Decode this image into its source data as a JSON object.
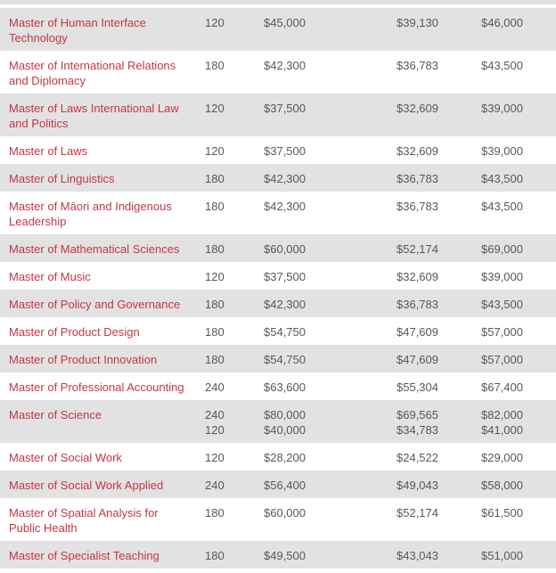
{
  "table": {
    "accent_color": "#c53546",
    "shaded_row_bg": "#e2e2e2",
    "value_text_color": "#57585a",
    "rows": [
      {
        "program": "Master of Human Interface Technology",
        "points": [
          "120"
        ],
        "fee_a": [
          "$45,000"
        ],
        "fee_b": [
          "$39,130"
        ],
        "fee_c": [
          "$46,000"
        ],
        "shaded": true
      },
      {
        "program": "Master of International Relations and Diplomacy",
        "points": [
          "180"
        ],
        "fee_a": [
          "$42,300"
        ],
        "fee_b": [
          "$36,783"
        ],
        "fee_c": [
          "$43,500"
        ],
        "shaded": false
      },
      {
        "program": "Master of Laws International Law and Politics",
        "points": [
          "120"
        ],
        "fee_a": [
          "$37,500"
        ],
        "fee_b": [
          "$32,609"
        ],
        "fee_c": [
          "$39,000"
        ],
        "shaded": true
      },
      {
        "program": "Master of Laws",
        "points": [
          "120"
        ],
        "fee_a": [
          "$37,500"
        ],
        "fee_b": [
          "$32,609"
        ],
        "fee_c": [
          "$39,000"
        ],
        "shaded": false
      },
      {
        "program": "Master of Linguistics",
        "points": [
          "180"
        ],
        "fee_a": [
          "$42,300"
        ],
        "fee_b": [
          "$36,783"
        ],
        "fee_c": [
          "$43,500"
        ],
        "shaded": true
      },
      {
        "program": "Master of Māori and Indigenous Leadership",
        "points": [
          "180"
        ],
        "fee_a": [
          "$42,300"
        ],
        "fee_b": [
          "$36,783"
        ],
        "fee_c": [
          "$43,500"
        ],
        "shaded": false
      },
      {
        "program": "Master of Mathematical Sciences",
        "points": [
          "180"
        ],
        "fee_a": [
          "$60,000"
        ],
        "fee_b": [
          "$52,174"
        ],
        "fee_c": [
          "$69,000"
        ],
        "shaded": true
      },
      {
        "program": "Master of Music",
        "points": [
          "120"
        ],
        "fee_a": [
          "$37,500"
        ],
        "fee_b": [
          "$32,609"
        ],
        "fee_c": [
          "$39,000"
        ],
        "shaded": false
      },
      {
        "program": "Master of Policy and Governance",
        "points": [
          "180"
        ],
        "fee_a": [
          "$42,300"
        ],
        "fee_b": [
          "$36,783"
        ],
        "fee_c": [
          "$43,500"
        ],
        "shaded": true
      },
      {
        "program": "Master of Product Design",
        "points": [
          "180"
        ],
        "fee_a": [
          "$54,750"
        ],
        "fee_b": [
          "$47,609"
        ],
        "fee_c": [
          "$57,000"
        ],
        "shaded": false
      },
      {
        "program": "Master of Product Innovation",
        "points": [
          "180"
        ],
        "fee_a": [
          "$54,750"
        ],
        "fee_b": [
          "$47,609"
        ],
        "fee_c": [
          "$57,000"
        ],
        "shaded": true
      },
      {
        "program": "Master of Professional Accounting",
        "points": [
          "240"
        ],
        "fee_a": [
          "$63,600"
        ],
        "fee_b": [
          "$55,304"
        ],
        "fee_c": [
          "$67,400"
        ],
        "shaded": false
      },
      {
        "program": "Master of Science",
        "points": [
          "240",
          "120"
        ],
        "fee_a": [
          "$80,000",
          "$40,000"
        ],
        "fee_b": [
          "$69,565",
          "$34,783"
        ],
        "fee_c": [
          "$82,000",
          "$41,000"
        ],
        "shaded": true
      },
      {
        "program": "Master of Social Work",
        "points": [
          "120"
        ],
        "fee_a": [
          "$28,200"
        ],
        "fee_b": [
          "$24,522"
        ],
        "fee_c": [
          "$29,000"
        ],
        "shaded": false
      },
      {
        "program": "Master of Social Work Applied",
        "points": [
          "240"
        ],
        "fee_a": [
          "$56,400"
        ],
        "fee_b": [
          "$49,043"
        ],
        "fee_c": [
          "$58,000"
        ],
        "shaded": true
      },
      {
        "program": "Master of Spatial Analysis for Public Health",
        "points": [
          "180"
        ],
        "fee_a": [
          "$60,000"
        ],
        "fee_b": [
          "$52,174"
        ],
        "fee_c": [
          "$61,500"
        ],
        "shaded": false
      },
      {
        "program": "Master of Specialist Teaching",
        "points": [
          "180"
        ],
        "fee_a": [
          "$49,500"
        ],
        "fee_b": [
          "$43,043"
        ],
        "fee_c": [
          "$51,000"
        ],
        "shaded": true
      }
    ]
  }
}
